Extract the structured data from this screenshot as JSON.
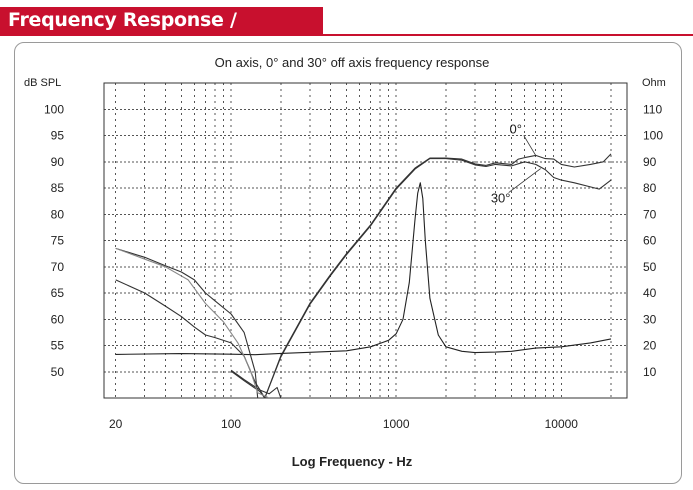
{
  "banner": {
    "title": "Frequency Response / Impedance",
    "color": "#c8102e"
  },
  "chart_data": {
    "type": "line",
    "title": "On axis, 0° and 30° off axis frequency response",
    "xlabel": "Log Frequency - Hz",
    "ylabel_left": "dB SPL",
    "ylabel_right": "Ohm",
    "x_scale": "log",
    "xlim": [
      17,
      25000
    ],
    "x_ticks": [
      {
        "v": 20,
        "label": "20"
      },
      {
        "v": 100,
        "label": "100"
      },
      {
        "v": 1000,
        "label": "1000"
      },
      {
        "v": 10000,
        "label": "10000"
      }
    ],
    "ylim_left": [
      45,
      105
    ],
    "y_ticks_left": [
      50,
      55,
      60,
      65,
      70,
      75,
      80,
      85,
      90,
      95,
      100
    ],
    "ylim_right": [
      0,
      120
    ],
    "y_ticks_right": [
      10,
      20,
      30,
      40,
      50,
      60,
      70,
      80,
      90,
      100,
      110
    ],
    "grid": true,
    "series": [
      {
        "name": "0°",
        "axis": "left",
        "color": "#333333",
        "points": [
          [
            100,
            50.3
          ],
          [
            120,
            48.5
          ],
          [
            150,
            46.5
          ],
          [
            160,
            45.0
          ],
          [
            200,
            53.0
          ],
          [
            300,
            63.0
          ],
          [
            400,
            68.5
          ],
          [
            500,
            72.5
          ],
          [
            700,
            78.0
          ],
          [
            1000,
            85.0
          ],
          [
            1300,
            88.8
          ],
          [
            1600,
            90.7
          ],
          [
            2000,
            90.7
          ],
          [
            2500,
            90.5
          ],
          [
            3000,
            89.6
          ],
          [
            3500,
            89.3
          ],
          [
            4000,
            89.8
          ],
          [
            5000,
            89.5
          ],
          [
            5500,
            90.5
          ],
          [
            6000,
            90.8
          ],
          [
            7000,
            91.2
          ],
          [
            8000,
            90.6
          ],
          [
            9000,
            90.5
          ],
          [
            10000,
            89.5
          ],
          [
            12000,
            89.0
          ],
          [
            15000,
            89.5
          ],
          [
            18000,
            90.0
          ],
          [
            20000,
            91.5
          ]
        ]
      },
      {
        "name": "30°",
        "axis": "left",
        "color": "#333333",
        "points": [
          [
            100,
            50.1
          ],
          [
            120,
            48.3
          ],
          [
            150,
            46.2
          ],
          [
            160,
            45.0
          ],
          [
            200,
            52.8
          ],
          [
            300,
            62.8
          ],
          [
            400,
            68.3
          ],
          [
            500,
            72.3
          ],
          [
            700,
            77.8
          ],
          [
            1000,
            84.8
          ],
          [
            1300,
            88.6
          ],
          [
            1600,
            90.6
          ],
          [
            2000,
            90.6
          ],
          [
            2500,
            90.3
          ],
          [
            3000,
            89.4
          ],
          [
            3500,
            89.1
          ],
          [
            4000,
            89.5
          ],
          [
            5000,
            89.2
          ],
          [
            6000,
            90.0
          ],
          [
            7000,
            89.5
          ],
          [
            8000,
            88.5
          ],
          [
            9000,
            87.0
          ],
          [
            10000,
            86.5
          ],
          [
            12000,
            86.0
          ],
          [
            15000,
            85.2
          ],
          [
            17000,
            84.8
          ],
          [
            20000,
            86.5
          ]
        ]
      },
      {
        "name": "",
        "axis": "right",
        "color": "#222222",
        "points": [
          [
            20,
            16.6
          ],
          [
            50,
            16.9
          ],
          [
            100,
            16.7
          ],
          [
            140,
            16.5
          ],
          [
            200,
            17.0
          ],
          [
            300,
            17.4
          ],
          [
            500,
            18.0
          ],
          [
            700,
            19.5
          ],
          [
            900,
            22.0
          ],
          [
            1000,
            24.5
          ],
          [
            1100,
            30.0
          ],
          [
            1200,
            44.0
          ],
          [
            1300,
            68.0
          ],
          [
            1350,
            78.0
          ],
          [
            1400,
            82.0
          ],
          [
            1450,
            76.0
          ],
          [
            1500,
            60.0
          ],
          [
            1600,
            38.0
          ],
          [
            1800,
            24.0
          ],
          [
            2000,
            19.5
          ],
          [
            2500,
            17.8
          ],
          [
            3000,
            17.3
          ],
          [
            4000,
            17.5
          ],
          [
            5000,
            17.8
          ],
          [
            7000,
            19.0
          ],
          [
            10000,
            19.5
          ],
          [
            15000,
            21.0
          ],
          [
            20000,
            22.5
          ]
        ]
      },
      {
        "name": "",
        "axis": "left",
        "color": "#333333",
        "points": [
          [
            20,
            73.5
          ],
          [
            30,
            71.8
          ],
          [
            40,
            70.2
          ],
          [
            50,
            69.0
          ],
          [
            60,
            67.5
          ],
          [
            70,
            65.0
          ],
          [
            80,
            63.5
          ],
          [
            100,
            61.0
          ],
          [
            120,
            57.5
          ],
          [
            140,
            50.0
          ],
          [
            145,
            45.0
          ]
        ]
      },
      {
        "name": "",
        "axis": "left",
        "color": "#333333",
        "points": [
          [
            20,
            67.5
          ],
          [
            30,
            65.0
          ],
          [
            40,
            62.5
          ],
          [
            50,
            60.5
          ],
          [
            60,
            58.5
          ],
          [
            70,
            57.0
          ],
          [
            80,
            56.5
          ],
          [
            100,
            55.5
          ],
          [
            120,
            53.0
          ],
          [
            140,
            48.0
          ],
          [
            150,
            46.5
          ],
          [
            170,
            45.8
          ],
          [
            190,
            47.0
          ],
          [
            200,
            45.0
          ]
        ]
      },
      {
        "name": "",
        "axis": "left",
        "color": "#888888",
        "points": [
          [
            20,
            73.5
          ],
          [
            40,
            70.0
          ],
          [
            55,
            67.5
          ],
          [
            70,
            63.0
          ],
          [
            90,
            59.5
          ],
          [
            110,
            55.5
          ],
          [
            130,
            50.5
          ],
          [
            145,
            46.0
          ],
          [
            170,
            45.0
          ]
        ]
      }
    ],
    "annotations": [
      {
        "label": "0°",
        "x": 7000,
        "y": 91.2
      },
      {
        "label": "30°",
        "x": 7500,
        "y": 88.7
      }
    ]
  }
}
